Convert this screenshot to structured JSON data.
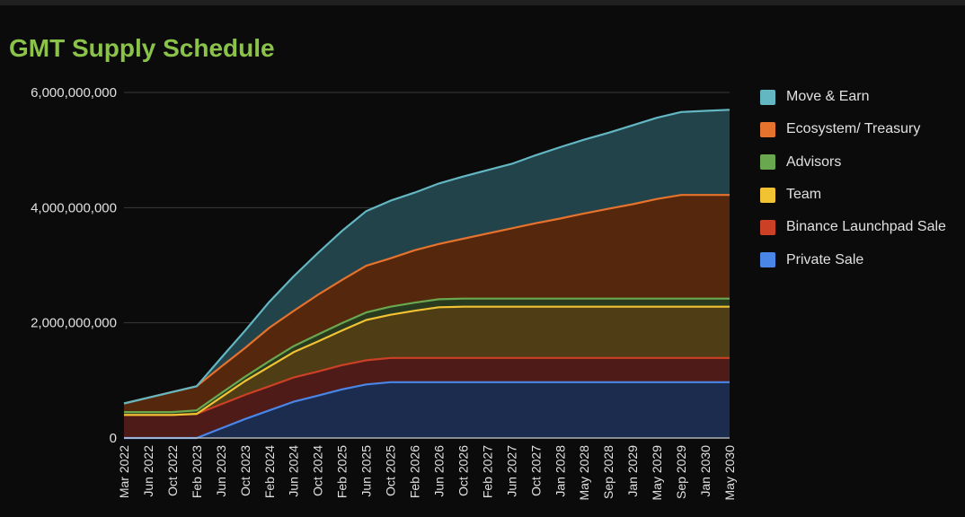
{
  "chart_data": {
    "type": "area",
    "stacked": true,
    "title": "GMT Supply Schedule",
    "xlabel": "",
    "ylabel": "",
    "ylim": [
      0,
      6000000000
    ],
    "y_ticks": [
      0,
      2000000000,
      4000000000,
      6000000000
    ],
    "y_tick_labels": [
      "0",
      "2,000,000,000",
      "4,000,000,000",
      "6,000,000,000"
    ],
    "x_tick_labels": [
      "Mar 2022",
      "Jun 2022",
      "Oct 2022",
      "Feb 2023",
      "Jun 2023",
      "Oct 2023",
      "Feb 2024",
      "Jun 2024",
      "Oct 2024",
      "Feb 2025",
      "Jun 2025",
      "Oct 2025",
      "Feb 2026",
      "Jun 2026",
      "Oct 2026",
      "Feb 2027",
      "Jun 2027",
      "Oct 2027",
      "Jan 2028",
      "May 2028",
      "Sep 2028",
      "Jan 2029",
      "May 2029",
      "Sep 2029",
      "Jan 2030",
      "May 2030"
    ],
    "grid": true,
    "legend_position": "right",
    "series": [
      {
        "name": "Private Sale",
        "color": "#4a86e8",
        "fill": "#1c2c4e",
        "values": [
          0,
          0,
          0,
          0,
          165000000,
          330000000,
          480000000,
          630000000,
          735000000,
          845000000,
          930000000,
          970000000,
          970000000,
          970000000,
          970000000,
          970000000,
          970000000,
          970000000,
          970000000,
          970000000,
          970000000,
          970000000,
          970000000,
          970000000,
          970000000,
          970000000
        ]
      },
      {
        "name": "Binance Launchpad Sale",
        "color": "#cc4125",
        "fill": "#4e1b18",
        "values": [
          400000000,
          400000000,
          400000000,
          420000000,
          420000000,
          420000000,
          420000000,
          420000000,
          420000000,
          420000000,
          420000000,
          420000000,
          420000000,
          420000000,
          420000000,
          420000000,
          420000000,
          420000000,
          420000000,
          420000000,
          420000000,
          420000000,
          420000000,
          420000000,
          420000000,
          420000000
        ]
      },
      {
        "name": "Team",
        "color": "#f1c232",
        "fill": "#4e3d15",
        "values": [
          0,
          0,
          0,
          0,
          120000000,
          240000000,
          340000000,
          440000000,
          520000000,
          600000000,
          700000000,
          750000000,
          820000000,
          880000000,
          890000000,
          890000000,
          890000000,
          890000000,
          890000000,
          890000000,
          890000000,
          890000000,
          890000000,
          890000000,
          890000000,
          890000000
        ]
      },
      {
        "name": "Advisors",
        "color": "#6aa84f",
        "fill": "#2a3a1f",
        "values": [
          50000000,
          50000000,
          50000000,
          60000000,
          70000000,
          75000000,
          95000000,
          105000000,
          120000000,
          130000000,
          130000000,
          140000000,
          140000000,
          140000000,
          140000000,
          140000000,
          140000000,
          140000000,
          140000000,
          140000000,
          140000000,
          140000000,
          140000000,
          140000000,
          140000000,
          140000000
        ]
      },
      {
        "name": "Ecosystem/ Treasury",
        "color": "#e6732d",
        "fill": "#55280d",
        "values": [
          150000000,
          250000000,
          350000000,
          420000000,
          460000000,
          500000000,
          580000000,
          610000000,
          690000000,
          750000000,
          810000000,
          840000000,
          910000000,
          960000000,
          1040000000,
          1130000000,
          1220000000,
          1310000000,
          1390000000,
          1480000000,
          1560000000,
          1640000000,
          1730000000,
          1800000000,
          1800000000,
          1800000000
        ]
      },
      {
        "name": "Move & Earn",
        "color": "#63b7c2",
        "fill": "#23434a",
        "values": [
          0,
          0,
          0,
          0,
          150000000,
          300000000,
          450000000,
          600000000,
          725000000,
          850000000,
          950000000,
          1000000000,
          1000000000,
          1050000000,
          1080000000,
          1100000000,
          1120000000,
          1180000000,
          1240000000,
          1280000000,
          1320000000,
          1370000000,
          1410000000,
          1440000000,
          1460000000,
          1480000000
        ]
      }
    ],
    "legend_order": [
      "Move & Earn",
      "Ecosystem/ Treasury",
      "Advisors",
      "Team",
      "Binance Launchpad Sale",
      "Private Sale"
    ]
  }
}
